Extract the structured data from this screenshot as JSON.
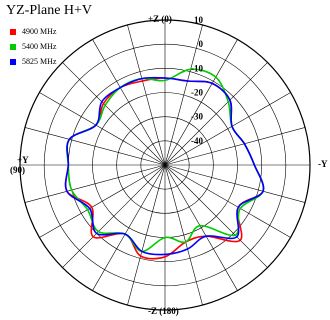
{
  "chart_data": {
    "type": "polar",
    "title": "YZ-Plane  H+V",
    "legend": [
      {
        "name": "4900 MHz",
        "color": "#ff0000"
      },
      {
        "name": "5400 MHz",
        "color": "#00cc00"
      },
      {
        "name": "5825 MHz",
        "color": "#0000ff"
      }
    ],
    "direction_labels": {
      "top": "+Z (0)",
      "bottom": "-Z (180)",
      "left_line1": "+Y",
      "left_line2": "(90)",
      "right": "-Y"
    },
    "radial_ticks": [
      "10",
      "0",
      "-10",
      "-20",
      "-30",
      "-40"
    ],
    "radial_range_db": [
      -50,
      10
    ],
    "angle_step_deg": 15,
    "grid": true,
    "legend_position": "top-left",
    "series": [
      {
        "name": "4900 MHz",
        "color": "#ff0000",
        "angles_deg": [
          0,
          15,
          30,
          45,
          60,
          75,
          90,
          105,
          120,
          135,
          150,
          165,
          180,
          195,
          210,
          225,
          240,
          255,
          270,
          285,
          300,
          315,
          330,
          345,
          360
        ],
        "values_db": [
          -14,
          -14,
          -11,
          -12,
          -18,
          -16,
          -13,
          -8,
          -15,
          -6,
          -16,
          -17,
          -12,
          -11,
          -17,
          -8,
          -15,
          -8,
          -10,
          -9,
          -17,
          -14,
          -13,
          -14,
          -14
        ]
      },
      {
        "name": "5400 MHz",
        "color": "#00cc00",
        "angles_deg": [
          0,
          15,
          30,
          45,
          60,
          75,
          90,
          105,
          120,
          135,
          150,
          165,
          180,
          195,
          210,
          225,
          240,
          255,
          270,
          285,
          300,
          315,
          330,
          345,
          360
        ],
        "values_db": [
          -15,
          -9,
          -8,
          -13,
          -18,
          -16,
          -13,
          -8,
          -14,
          -9,
          -21,
          -17,
          -20,
          -13,
          -17,
          -11,
          -13,
          -10,
          -10,
          -9,
          -17,
          -15,
          -13,
          -13,
          -15
        ]
      },
      {
        "name": "5825 MHz",
        "color": "#0000ff",
        "angles_deg": [
          0,
          15,
          30,
          45,
          60,
          75,
          90,
          105,
          120,
          135,
          150,
          165,
          180,
          195,
          210,
          225,
          240,
          255,
          270,
          285,
          300,
          315,
          330,
          345,
          360
        ],
        "values_db": [
          -14,
          -14,
          -11,
          -12,
          -18,
          -16,
          -13,
          -8,
          -15,
          -8,
          -16,
          -14,
          -13,
          -13,
          -17,
          -10,
          -14,
          -8,
          -10,
          -9,
          -17,
          -13,
          -13,
          -13,
          -14
        ]
      }
    ]
  }
}
